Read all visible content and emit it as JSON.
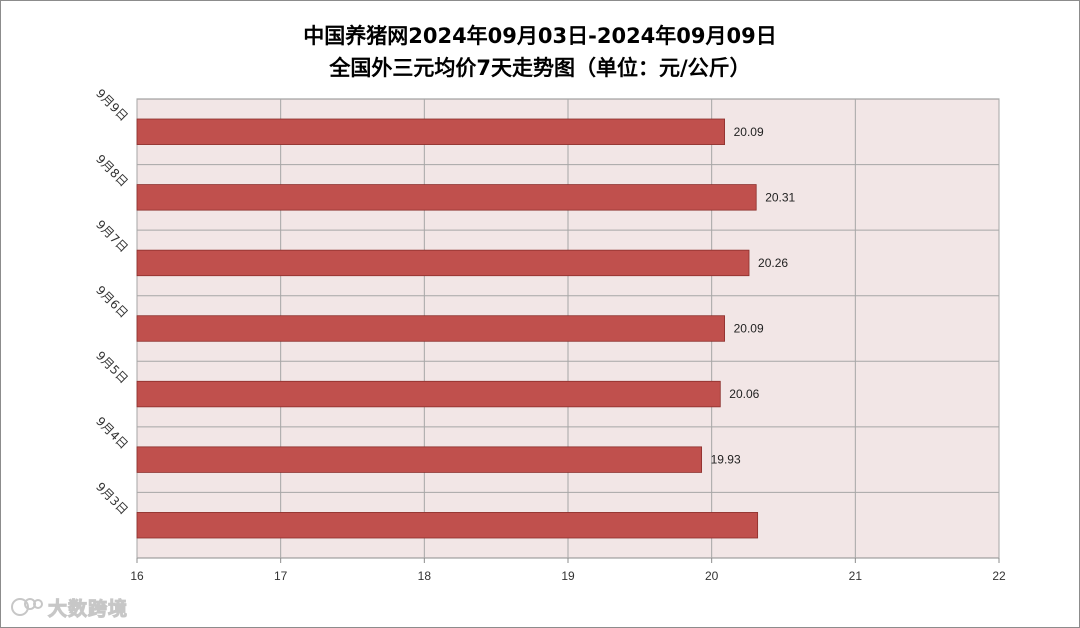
{
  "title_line1": "中国养猪网2024年09月03日-2024年09月09日",
  "title_line2": "全国外三元均价7天走势图（单位：元/公斤）",
  "watermark": {
    "text": "大数跨境",
    "icon": "brand-logo-icon"
  },
  "colors": {
    "bar_fill": "#c0504d",
    "bar_stroke": "#8b2e2b",
    "plot_background": "#f2e6e6",
    "grid": "#a6a6a6"
  },
  "chart_data": {
    "type": "bar",
    "orientation": "horizontal",
    "categories": [
      "9月3日",
      "9月4日",
      "9月5日",
      "9月6日",
      "9月7日",
      "9月8日",
      "9月9日"
    ],
    "values": [
      20.32,
      19.93,
      20.06,
      20.09,
      20.26,
      20.31,
      20.09
    ],
    "value_labels": [
      "",
      "19.93",
      "20.06",
      "20.09",
      "20.26",
      "20.31",
      "20.09"
    ],
    "xlim": [
      16,
      22
    ],
    "x_ticks": [
      "16",
      "17",
      "18",
      "19",
      "20",
      "21",
      "22"
    ],
    "grid": true,
    "legend": "none",
    "title": "中国养猪网2024年09月03日-2024年09月09日 全国外三元均价7天走势图（单位：元/公斤）"
  }
}
